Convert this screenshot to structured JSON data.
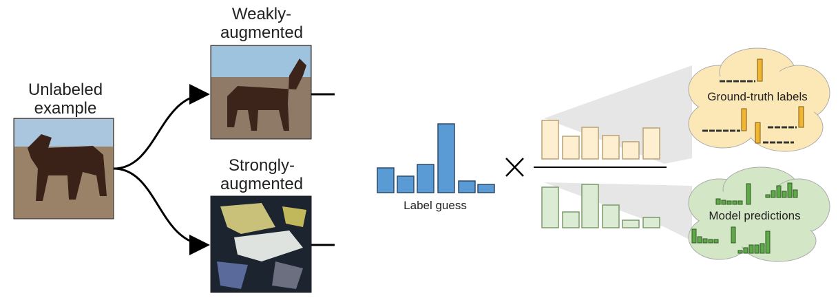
{
  "unlabeled": {
    "lines": [
      "Unlabeled",
      "example"
    ]
  },
  "weak": {
    "lines": [
      "Weakly-",
      "augmented"
    ]
  },
  "strong": {
    "lines": [
      "Strongly-",
      "augmented"
    ]
  },
  "label_guess": "Label guess",
  "ground_truth": "Ground-truth labels",
  "model_predictions": "Model predictions"
}
